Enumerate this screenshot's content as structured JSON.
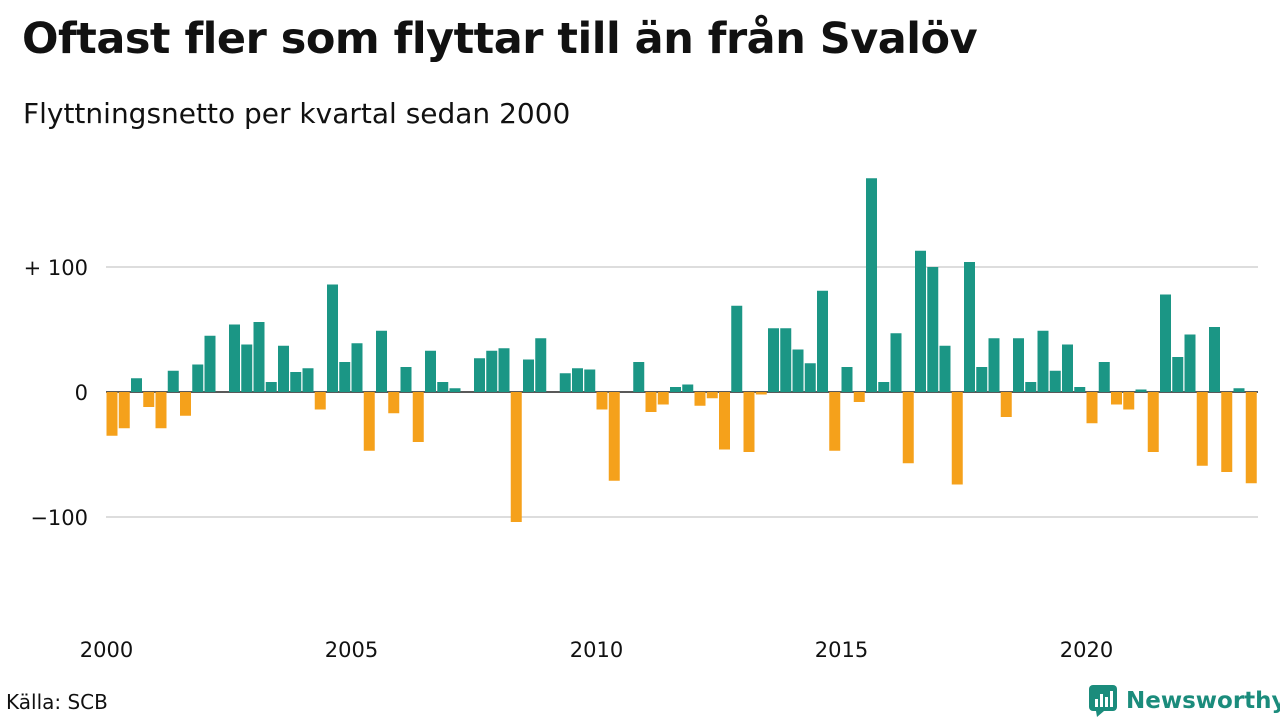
{
  "title": "Oftast fler som flyttar till än från Svalöv",
  "subtitle": "Flyttningsnetto per kvartal sedan 2000",
  "source": "Källa: SCB",
  "brand": "Newsworthy",
  "colors": {
    "positive": "#1b9685",
    "negative": "#f5a11b",
    "grid": "#dddddd",
    "brand": "#1b8c7c"
  },
  "chart_data": {
    "type": "bar",
    "x_start": "2000 Q1",
    "x_end": "2023 Q4",
    "x_ticks": [
      "2000",
      "2005",
      "2010",
      "2015",
      "2020"
    ],
    "y_ticks": [
      {
        "value": 100,
        "label": "+ 100"
      },
      {
        "value": 0,
        "label": "0"
      },
      {
        "value": -100,
        "label": "−100"
      }
    ],
    "ylim": [
      -150,
      180
    ],
    "values": [
      -35,
      -29,
      11,
      -12,
      -29,
      17,
      -19,
      22,
      45,
      0,
      54,
      38,
      56,
      8,
      37,
      16,
      19,
      -14,
      86,
      24,
      39,
      -47,
      49,
      -17,
      20,
      -40,
      33,
      8,
      3,
      0,
      27,
      33,
      35,
      -104,
      26,
      43,
      0,
      15,
      19,
      18,
      -14,
      -71,
      0,
      24,
      -16,
      -10,
      4,
      6,
      -11,
      -5,
      -46,
      69,
      -48,
      -2,
      51,
      51,
      34,
      23,
      81,
      -47,
      20,
      -8,
      171,
      8,
      47,
      -57,
      113,
      100,
      37,
      -74,
      104,
      20,
      43,
      -20,
      43,
      8,
      49,
      17,
      38,
      4,
      -25,
      24,
      -10,
      -14,
      2,
      -48,
      78,
      28,
      46,
      -59,
      52,
      -64,
      3,
      -73,
      0,
      0
    ]
  }
}
